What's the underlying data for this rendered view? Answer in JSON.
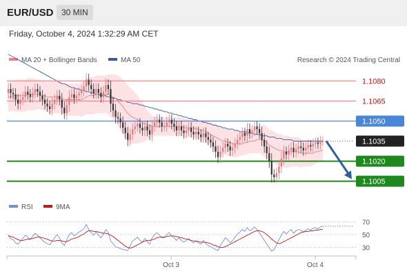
{
  "header": {
    "symbol": "EUR/USD",
    "timeframe": "30 MIN"
  },
  "timestamp": "Friday, October 4, 2024 1:32:29 AM CET",
  "credit": "Research © 2024 Trading Central",
  "colors": {
    "ma20": "#f08080",
    "ma50": "#3c5a99",
    "bands": "#fbd7dc",
    "up": "#e0787c",
    "down": "#333333",
    "resistance": "#f28b8b",
    "pivot": "#4a86d8",
    "support": "#1e8a1e",
    "current": "#222222",
    "arrow": "#2f5f9f",
    "rsi": "#6d8fe0",
    "rsi_ma": "#cc1111"
  },
  "icons": {
    "forecast_arrow": "arrow-down-right-icon"
  },
  "chart_data": [
    {
      "type": "candlestick",
      "legend": [
        "MA 20 + Bollinger Bands",
        "MA 50"
      ],
      "legend_position": "top-left",
      "x_ticks": [
        "Oct 3",
        "Oct 4"
      ],
      "y_range": [
        1.0995,
        1.109
      ],
      "levels": [
        {
          "value": 1.108,
          "label": "1.1080",
          "role": "resistance"
        },
        {
          "value": 1.1065,
          "label": "1.1065",
          "role": "resistance"
        },
        {
          "value": 1.105,
          "label": "1.1050",
          "role": "pivot"
        },
        {
          "value": 1.1035,
          "label": "1.1035",
          "role": "current"
        },
        {
          "value": 1.102,
          "label": "1.1020",
          "role": "support"
        },
        {
          "value": 1.1005,
          "label": "1.1005",
          "role": "support"
        }
      ],
      "forecast": {
        "from": 1.1035,
        "to": 1.1005,
        "direction": "down"
      },
      "close": [
        1.1074,
        1.1071,
        1.107,
        1.1066,
        1.1063,
        1.1066,
        1.1068,
        1.1072,
        1.107,
        1.1068,
        1.1071,
        1.1074,
        1.1072,
        1.1069,
        1.1066,
        1.1063,
        1.1061,
        1.1059,
        1.1063,
        1.1066,
        1.1069,
        1.1066,
        1.106,
        1.1056,
        1.1062,
        1.1068,
        1.107,
        1.1067,
        1.1069,
        1.1071,
        1.1073,
        1.1076,
        1.1081,
        1.1077,
        1.1074,
        1.1071,
        1.1074,
        1.1071,
        1.1068,
        1.1072,
        1.1077,
        1.1074,
        1.1063,
        1.1058,
        1.1053,
        1.1052,
        1.1049,
        1.1045,
        1.1041,
        1.1036,
        1.104,
        1.1044,
        1.1046,
        1.1048,
        1.1045,
        1.1043,
        1.1046,
        1.1043,
        1.104,
        1.1046,
        1.1049,
        1.1051,
        1.1049,
        1.1046,
        1.1046,
        1.1049,
        1.1051,
        1.1048,
        1.1046,
        1.1043,
        1.1046,
        1.1043,
        1.1041,
        1.1043,
        1.1045,
        1.1042,
        1.104,
        1.1042,
        1.104,
        1.1038,
        1.1041,
        1.1038,
        1.1036,
        1.1034,
        1.1031,
        1.1027,
        1.1023,
        1.1027,
        1.103,
        1.1033,
        1.1031,
        1.1028,
        1.103,
        1.1033,
        1.1036,
        1.1038,
        1.1041,
        1.1039,
        1.1044,
        1.1041,
        1.1043,
        1.1046,
        1.1044,
        1.1041,
        1.1036,
        1.1031,
        1.1026,
        1.102,
        1.101,
        1.1008,
        1.1011,
        1.1016,
        1.1022,
        1.1027,
        1.1025,
        1.1028,
        1.103,
        1.1027,
        1.1029,
        1.1031,
        1.103,
        1.1028,
        1.103,
        1.1032,
        1.1031,
        1.1033,
        1.1034,
        1.1033,
        1.1035,
        1.1035
      ],
      "ma20": [
        1.1068,
        1.1068,
        1.1069,
        1.1069,
        1.1069,
        1.1069,
        1.1069,
        1.1069,
        1.107,
        1.107,
        1.107,
        1.107,
        1.107,
        1.107,
        1.1069,
        1.1069,
        1.1068,
        1.1068,
        1.1068,
        1.1068,
        1.1068,
        1.1068,
        1.1067,
        1.1066,
        1.1066,
        1.1066,
        1.1066,
        1.1066,
        1.1066,
        1.1066,
        1.1066,
        1.1067,
        1.1068,
        1.1069,
        1.1069,
        1.1069,
        1.107,
        1.107,
        1.107,
        1.107,
        1.107,
        1.107,
        1.1069,
        1.1068,
        1.1067,
        1.1065,
        1.1063,
        1.1061,
        1.1058,
        1.1056,
        1.1054,
        1.1053,
        1.1052,
        1.1051,
        1.105,
        1.1049,
        1.1048,
        1.1047,
        1.1047,
        1.1046,
        1.1046,
        1.1046,
        1.1046,
        1.1046,
        1.1046,
        1.1046,
        1.1046,
        1.1046,
        1.1046,
        1.1046,
        1.1046,
        1.1046,
        1.1045,
        1.1045,
        1.1045,
        1.1045,
        1.1045,
        1.1044,
        1.1044,
        1.1043,
        1.1043,
        1.1042,
        1.1041,
        1.104,
        1.1039,
        1.1038,
        1.1037,
        1.1036,
        1.1035,
        1.1035,
        1.1034,
        1.1034,
        1.1033,
        1.1033,
        1.1033,
        1.1033,
        1.1033,
        1.1034,
        1.1034,
        1.1035,
        1.1035,
        1.1035,
        1.1036,
        1.1036,
        1.1036,
        1.1035,
        1.1034,
        1.1032,
        1.1031,
        1.103,
        1.1029,
        1.1028,
        1.1028,
        1.1027,
        1.1027,
        1.1027,
        1.1027,
        1.1027,
        1.1027,
        1.1027,
        1.1026,
        1.1026,
        1.1026,
        1.1026,
        1.1026,
        1.1026,
        1.1027,
        1.1027,
        1.1028,
        1.1028
      ],
      "bb_width": [
        0.0011,
        0.0011,
        0.0011,
        0.0012,
        0.0012,
        0.0012,
        0.0012,
        0.0012,
        0.0012,
        0.0012,
        0.0012,
        0.0012,
        0.0011,
        0.0011,
        0.0011,
        0.0011,
        0.0011,
        0.0012,
        0.0012,
        0.0012,
        0.0012,
        0.0012,
        0.0012,
        0.0012,
        0.0012,
        0.0012,
        0.0012,
        0.0012,
        0.0012,
        0.0012,
        0.0013,
        0.0013,
        0.0013,
        0.0014,
        0.0014,
        0.0014,
        0.0014,
        0.0014,
        0.0014,
        0.0014,
        0.0014,
        0.0015,
        0.0016,
        0.0017,
        0.0018,
        0.0019,
        0.002,
        0.002,
        0.0021,
        0.0021,
        0.0021,
        0.002,
        0.0019,
        0.0018,
        0.0016,
        0.0015,
        0.0013,
        0.0011,
        0.0009,
        0.0008,
        0.0007,
        0.0007,
        0.0007,
        0.0007,
        0.0007,
        0.0007,
        0.0007,
        0.0007,
        0.0007,
        0.0007,
        0.0007,
        0.0007,
        0.0007,
        0.0007,
        0.0007,
        0.0007,
        0.0007,
        0.0007,
        0.0007,
        0.0008,
        0.0008,
        0.0008,
        0.0009,
        0.0009,
        0.0009,
        0.001,
        0.001,
        0.001,
        0.001,
        0.001,
        0.001,
        0.001,
        0.001,
        0.001,
        0.001,
        0.0009,
        0.0009,
        0.0009,
        0.0009,
        0.0009,
        0.0009,
        0.0009,
        0.001,
        0.001,
        0.0011,
        0.0012,
        0.0012,
        0.0012,
        0.0012,
        0.0012,
        0.0012,
        0.0012,
        0.0012,
        0.0012,
        0.0012,
        0.0012,
        0.0011,
        0.0011,
        0.0011,
        0.0011,
        0.0011,
        0.001,
        0.001,
        0.001,
        0.001,
        0.0009,
        0.0009,
        0.0008,
        0.0008,
        0.0008,
        0.0008,
        0.0008
      ],
      "ma50": [
        1.11,
        1.1099,
        1.1098,
        1.1097,
        1.1096,
        1.1095,
        1.1094,
        1.1093,
        1.1092,
        1.1091,
        1.109,
        1.1089,
        1.1088,
        1.1087,
        1.1086,
        1.1085,
        1.1084,
        1.1083,
        1.1082,
        1.1081,
        1.108,
        1.1079,
        1.1078,
        1.1078,
        1.1077,
        1.1076,
        1.1075,
        1.1075,
        1.1074,
        1.1074,
        1.1073,
        1.1073,
        1.1072,
        1.1072,
        1.1071,
        1.1071,
        1.107,
        1.107,
        1.1069,
        1.1069,
        1.1069,
        1.1068,
        1.1068,
        1.1067,
        1.1067,
        1.1066,
        1.1066,
        1.1065,
        1.1065,
        1.1064,
        1.1064,
        1.1063,
        1.1063,
        1.1063,
        1.1062,
        1.1062,
        1.1061,
        1.1061,
        1.106,
        1.106,
        1.1059,
        1.1059,
        1.1058,
        1.1058,
        1.1057,
        1.1057,
        1.1056,
        1.1056,
        1.1055,
        1.1055,
        1.1054,
        1.1054,
        1.1053,
        1.1053,
        1.1052,
        1.1052,
        1.1051,
        1.1051,
        1.105,
        1.105,
        1.1049,
        1.1049,
        1.1048,
        1.1048,
        1.1047,
        1.1047,
        1.1046,
        1.1046,
        1.1045,
        1.1045,
        1.1044,
        1.1044,
        1.1044,
        1.1043,
        1.1043,
        1.1042,
        1.1042,
        1.1042,
        1.1041,
        1.1041,
        1.1041,
        1.104,
        1.104,
        1.104,
        1.1039,
        1.1039,
        1.1039,
        1.1038,
        1.1038,
        1.1038,
        1.1037,
        1.1037,
        1.1037,
        1.1036,
        1.1036,
        1.1036,
        1.1036,
        1.1035,
        1.1035,
        1.1035,
        1.1035,
        1.1035,
        1.1035,
        1.1035,
        1.1035,
        1.1035,
        1.1035,
        1.1035,
        1.1035,
        1.1035
      ]
    },
    {
      "type": "line",
      "legend": [
        "RSI",
        "9MA"
      ],
      "y_ticks": [
        70,
        50,
        30
      ],
      "y_range": [
        22,
        78
      ],
      "rsi": [
        50,
        44,
        42,
        37,
        35,
        40,
        44,
        49,
        46,
        43,
        47,
        52,
        49,
        45,
        41,
        38,
        36,
        34,
        40,
        45,
        50,
        45,
        37,
        33,
        42,
        50,
        53,
        48,
        51,
        54,
        56,
        59,
        66,
        58,
        53,
        49,
        54,
        49,
        45,
        51,
        58,
        53,
        40,
        36,
        31,
        30,
        28,
        27,
        26,
        25,
        33,
        40,
        43,
        46,
        41,
        38,
        44,
        39,
        35,
        45,
        50,
        53,
        49,
        45,
        45,
        50,
        53,
        48,
        45,
        41,
        45,
        41,
        38,
        41,
        44,
        40,
        37,
        40,
        37,
        35,
        41,
        36,
        33,
        31,
        29,
        27,
        25,
        33,
        39,
        45,
        42,
        37,
        41,
        46,
        51,
        54,
        58,
        55,
        61,
        56,
        58,
        62,
        58,
        53,
        47,
        41,
        35,
        30,
        24,
        27,
        34,
        42,
        49,
        55,
        51,
        55,
        58,
        52,
        56,
        58,
        57,
        54,
        57,
        59,
        57,
        60,
        61,
        59,
        62,
        63
      ],
      "rsi_ma": [
        48,
        47,
        46,
        44,
        42,
        41,
        41,
        42,
        43,
        43,
        44,
        45,
        46,
        46,
        45,
        44,
        43,
        41,
        40,
        40,
        41,
        41,
        40,
        39,
        39,
        41,
        43,
        44,
        45,
        47,
        49,
        51,
        54,
        56,
        56,
        55,
        55,
        54,
        53,
        52,
        52,
        51,
        49,
        47,
        44,
        41,
        38,
        35,
        32,
        30,
        29,
        30,
        32,
        34,
        36,
        38,
        40,
        41,
        41,
        42,
        43,
        45,
        46,
        46,
        46,
        47,
        48,
        48,
        48,
        47,
        46,
        45,
        44,
        43,
        42,
        41,
        40,
        40,
        39,
        38,
        38,
        38,
        37,
        36,
        34,
        33,
        31,
        30,
        30,
        31,
        33,
        35,
        37,
        39,
        41,
        43,
        45,
        47,
        49,
        51,
        53,
        55,
        56,
        56,
        55,
        53,
        50,
        47,
        43,
        40,
        37,
        36,
        37,
        39,
        41,
        43,
        45,
        47,
        49,
        51,
        53,
        54,
        55,
        55,
        56,
        56,
        57,
        57,
        58,
        58
      ]
    }
  ]
}
